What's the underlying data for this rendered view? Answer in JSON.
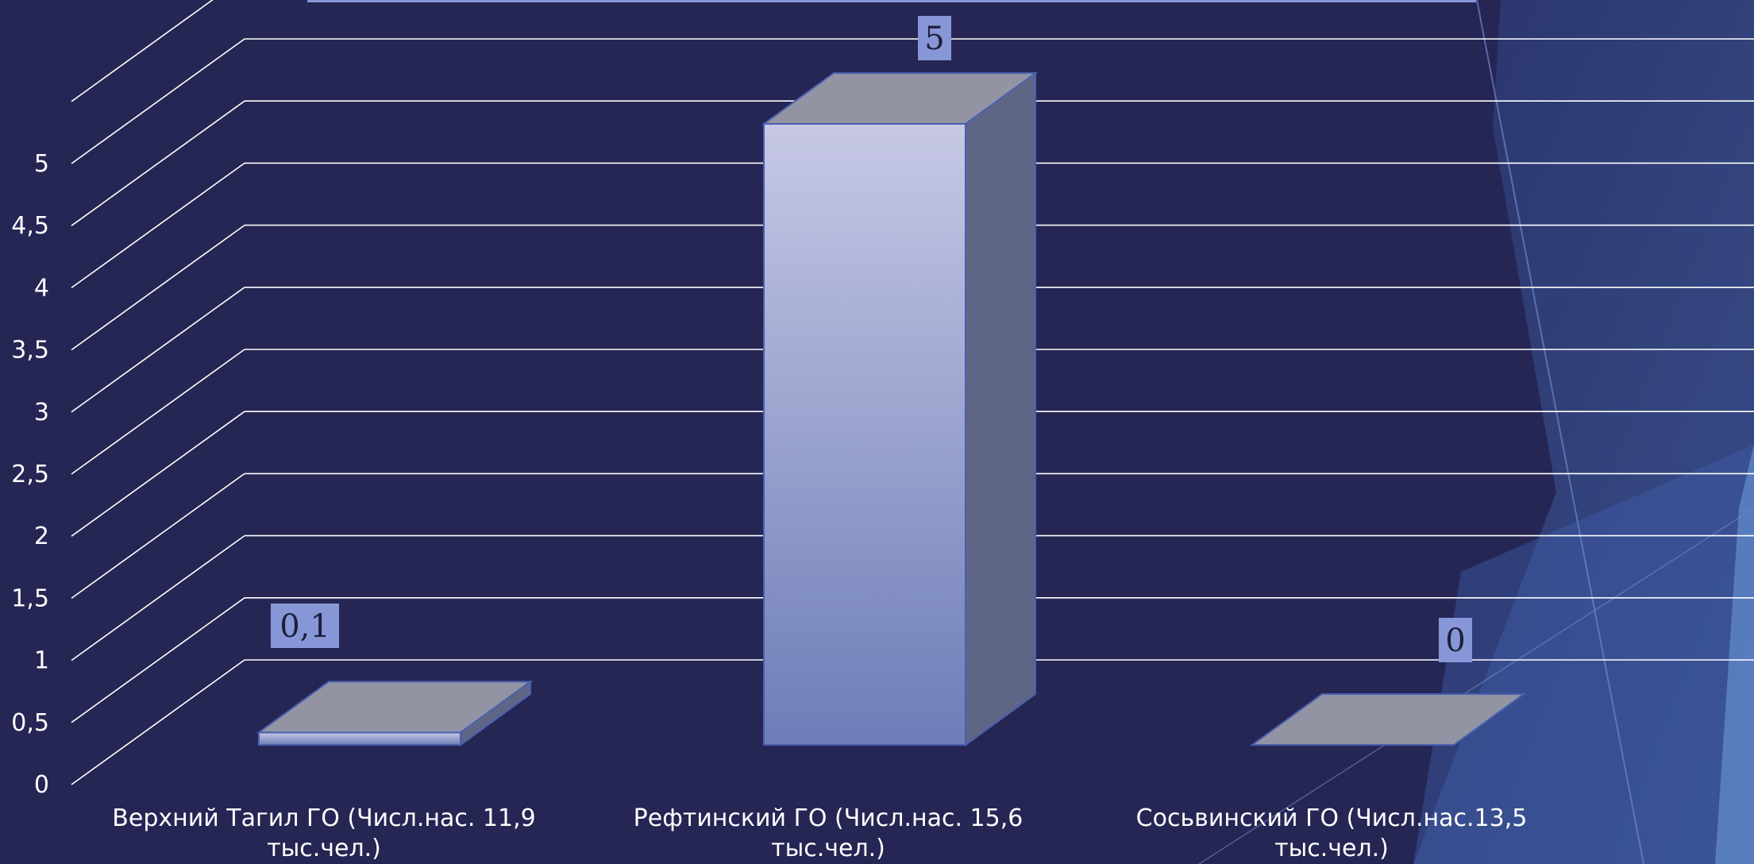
{
  "chart_data": {
    "type": "bar",
    "variant": "3d-column",
    "categories": [
      [
        "Верхний Тагил ГО (Числ.нас. 11,9",
        "тыс.чел.)"
      ],
      [
        "Рефтинский ГО (Числ.нас. 15,6",
        "тыс.чел.)"
      ],
      [
        "Сосьвинский ГО (Числ.нас.13,5",
        "тыс.чел.)"
      ]
    ],
    "values": [
      0.1,
      5,
      0
    ],
    "data_labels": [
      "0,1",
      "5",
      "0"
    ],
    "yticks": [
      "0",
      "0,5",
      "1",
      "1,5",
      "2",
      "2,5",
      "3",
      "3,5",
      "4",
      "4,5",
      "5"
    ],
    "ylim": [
      0,
      5
    ],
    "grid": true,
    "legend": "none",
    "colors": {
      "background": "#252654",
      "gridline": "#ffffff",
      "bar_front_top": "#c6c8e4",
      "bar_front_bottom": "#6d7db8",
      "bar_top": "#9294a4",
      "bar_side": "#5f6685",
      "label_box": "#8796d6",
      "decor_shape": "#3e5ea8"
    }
  }
}
